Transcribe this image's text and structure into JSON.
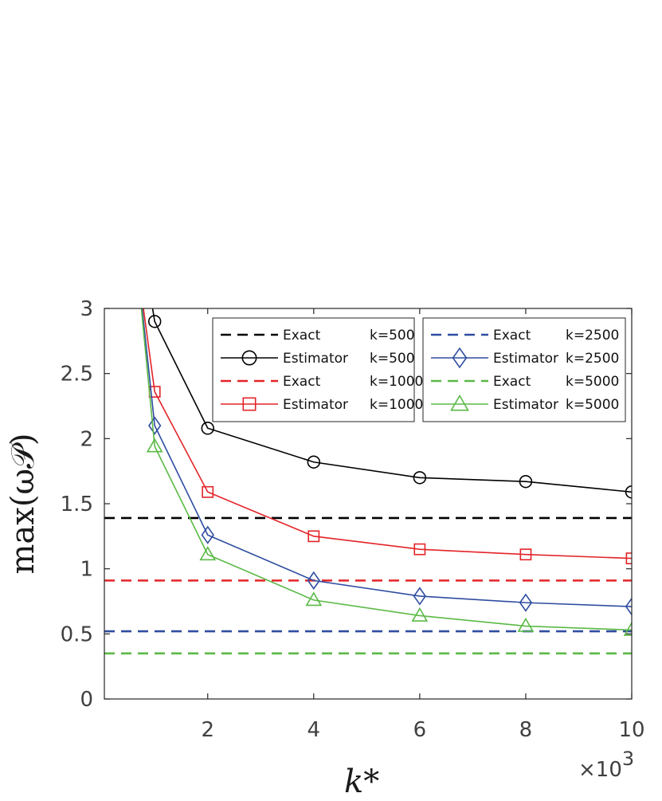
{
  "chart_data": {
    "type": "line",
    "xlabel": "k*",
    "ylabel": "max(ω𝒫)",
    "x_multiplier": "×10",
    "x_multiplier_exp": "3",
    "xlim": [
      0.05,
      10
    ],
    "ylim": [
      0,
      3
    ],
    "xticks": [
      2,
      4,
      6,
      8,
      10
    ],
    "yticks": [
      0,
      0.5,
      1,
      1.5,
      2,
      2.5,
      3
    ],
    "xtick_labels": [
      "2",
      "4",
      "6",
      "8",
      "10"
    ],
    "ytick_labels": [
      "0",
      "0.5",
      "1",
      "1.5",
      "2",
      "2.5",
      "3"
    ],
    "grid": false,
    "legend_placement": "top-right, two columns",
    "x": [
      1,
      2,
      4,
      6,
      8,
      10
    ],
    "series": [
      {
        "kind": "exact",
        "legend_name": "Exact",
        "legend_k": "k=500",
        "color": "#000000",
        "value": 1.39
      },
      {
        "kind": "estimator",
        "legend_name": "Estimator",
        "legend_k": "k=500",
        "color": "#000000",
        "marker": "circle",
        "steep_start": [
          0.88,
          3.2
        ],
        "values": [
          2.9,
          2.08,
          1.82,
          1.7,
          1.67,
          1.59
        ]
      },
      {
        "kind": "exact",
        "legend_name": "Exact",
        "legend_k": "k=1000",
        "color": "#e32428",
        "value": 0.91
      },
      {
        "kind": "estimator",
        "legend_name": "Estimator",
        "legend_k": "k=1000",
        "color": "#e32428",
        "marker": "square",
        "steep_start": [
          0.72,
          3.2
        ],
        "values": [
          2.36,
          1.59,
          1.25,
          1.15,
          1.11,
          1.08
        ]
      },
      {
        "kind": "exact",
        "legend_name": "Exact",
        "legend_k": "k=2500",
        "color": "#2f4da0",
        "value": 0.52
      },
      {
        "kind": "estimator",
        "legend_name": "Estimator",
        "legend_k": "k=2500",
        "color": "#2f4da0",
        "marker": "diamond",
        "steep_start": [
          0.71,
          3.2
        ],
        "values": [
          2.1,
          1.26,
          0.91,
          0.79,
          0.74,
          0.71
        ]
      },
      {
        "kind": "exact",
        "legend_name": "Exact",
        "legend_k": "k=5000",
        "color": "#5bb946",
        "value": 0.35
      },
      {
        "kind": "estimator",
        "legend_name": "Estimator",
        "legend_k": "k=5000",
        "color": "#5bb946",
        "marker": "triangle",
        "steep_start": [
          0.7,
          3.2
        ],
        "values": [
          1.94,
          1.11,
          0.76,
          0.64,
          0.56,
          0.53
        ]
      }
    ]
  }
}
